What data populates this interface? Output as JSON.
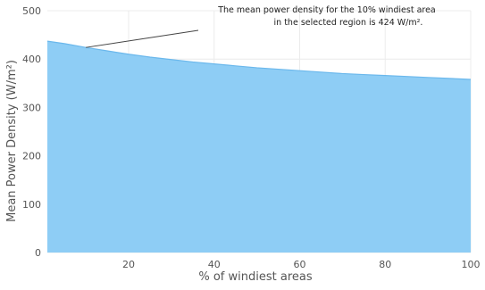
{
  "chart_data": {
    "type": "area",
    "xlabel": "% of windiest areas",
    "ylabel": "Mean Power Density (W/m²)",
    "xlim": [
      1,
      100
    ],
    "ylim": [
      0,
      500
    ],
    "x_ticks": [
      20,
      40,
      60,
      80,
      100
    ],
    "y_ticks": [
      0,
      100,
      200,
      300,
      400,
      500
    ],
    "grid": true,
    "fill_color": "#8ecdf5",
    "line_color": "#6bb8ec",
    "series": [
      {
        "x": [
          1,
          5,
          10,
          15,
          20,
          25,
          30,
          35,
          40,
          45,
          50,
          55,
          60,
          65,
          70,
          75,
          80,
          85,
          90,
          95,
          100
        ],
        "y": [
          437,
          432,
          424,
          417,
          410,
          404,
          399,
          394,
          390,
          386,
          382,
          379,
          376,
          373,
          370,
          368,
          366,
          364,
          362,
          360,
          358
        ]
      }
    ],
    "annotation": {
      "line1": "The mean power density for the 10% windiest area",
      "line2": "in the selected region is 424 W/m².",
      "point": {
        "x": 10,
        "y": 424
      }
    }
  }
}
